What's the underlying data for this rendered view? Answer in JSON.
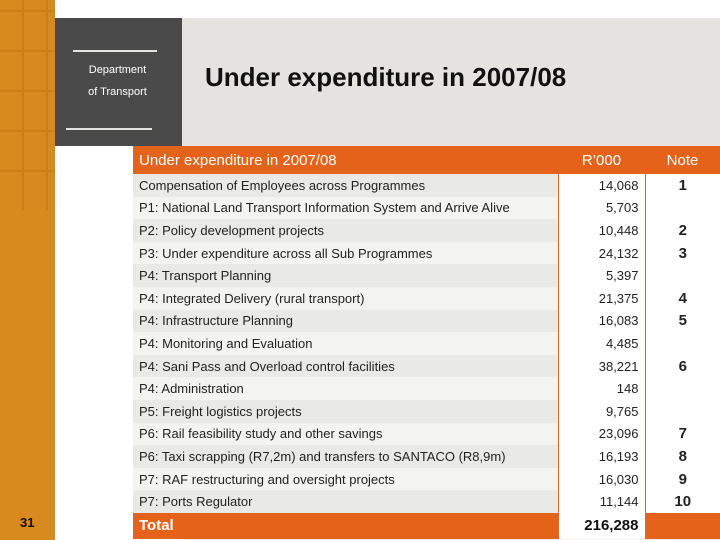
{
  "header": {
    "dept_line1": "Department",
    "dept_line2": "of Transport",
    "title": "Under expenditure in 2007/08"
  },
  "table": {
    "col_name": "Under expenditure in 2007/08",
    "col_amount": "R’000",
    "col_note": "Note",
    "rows": [
      {
        "name": "Compensation of Employees across Programmes",
        "amount": "14,068",
        "note": "1"
      },
      {
        "name": "P1: National Land Transport Information System and Arrive Alive",
        "amount": "5,703",
        "note": ""
      },
      {
        "name": "P2: Policy development projects",
        "amount": "10,448",
        "note": "2"
      },
      {
        "name": "P3: Under expenditure across all Sub Programmes",
        "amount": "24,132",
        "note": "3"
      },
      {
        "name": "P4: Transport Planning",
        "amount": "5,397",
        "note": ""
      },
      {
        "name": "P4: Integrated Delivery (rural transport)",
        "amount": "21,375",
        "note": "4"
      },
      {
        "name": "P4: Infrastructure Planning",
        "amount": "16,083",
        "note": "5"
      },
      {
        "name": "P4: Monitoring and Evaluation",
        "amount": "4,485",
        "note": ""
      },
      {
        "name": "P4: Sani Pass and Overload control facilities",
        "amount": "38,221",
        "note": "6"
      },
      {
        "name": "P4: Administration",
        "amount": "148",
        "note": ""
      },
      {
        "name": "P5: Freight logistics projects",
        "amount": "9,765",
        "note": ""
      },
      {
        "name": "P6: Rail feasibility study and other savings",
        "amount": "23,096",
        "note": "7"
      },
      {
        "name": "P6: Taxi scrapping (R7,2m) and transfers to SANTACO (R8,9m)",
        "amount": "16,193",
        "note": "8"
      },
      {
        "name": "P7: RAF restructuring and oversight projects",
        "amount": "16,030",
        "note": "9"
      },
      {
        "name": "P7: Ports Regulator",
        "amount": "11,144",
        "note": "10"
      }
    ],
    "total_label": "Total",
    "total_amount": "216,288"
  },
  "footer": {
    "page_number": "31"
  },
  "colors": {
    "accent": "#e4621a",
    "stripe": "#d98a1e",
    "header_dark": "#4a4a4a",
    "header_light": "#e4e3df"
  }
}
